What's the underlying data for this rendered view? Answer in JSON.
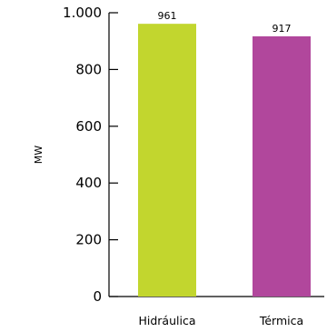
{
  "chart_data": {
    "type": "bar",
    "categories": [
      "Hidráulica",
      "Térmica"
    ],
    "values": [
      961,
      917
    ],
    "value_labels": [
      "961",
      "917"
    ],
    "colors": [
      "#c2d62e",
      "#b1479c"
    ],
    "ylabel": "MW",
    "xlabel": "",
    "ylim": [
      0,
      1000
    ],
    "yticks": [
      0,
      200,
      400,
      600,
      800,
      1000
    ],
    "ytick_labels": [
      "0",
      "200",
      "400",
      "600",
      "800",
      "1.000"
    ],
    "grid": false,
    "legend": "none"
  }
}
